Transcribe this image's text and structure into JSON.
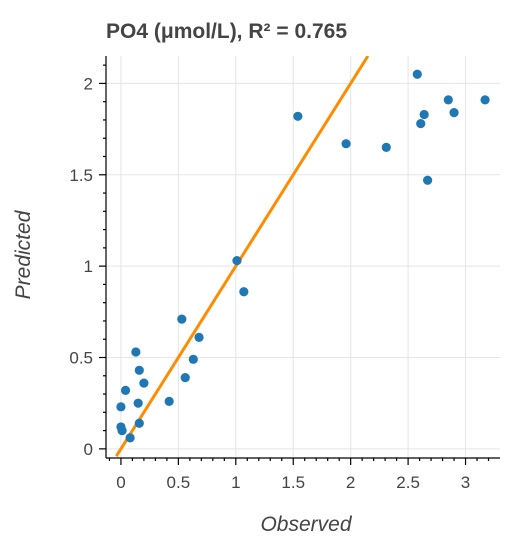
{
  "chart_data": {
    "type": "scatter",
    "title": "PO4 (μmol/L), R² = 0.765",
    "xlabel": "Observed",
    "ylabel": "Predicted",
    "xlim": [
      -0.13,
      3.3
    ],
    "ylim": [
      -0.05,
      2.15
    ],
    "x_ticks": [
      0,
      0.5,
      1,
      1.5,
      2,
      2.5,
      3
    ],
    "x_tick_labels": [
      "0",
      "0.5",
      "1",
      "1.5",
      "2",
      "2.5",
      "3"
    ],
    "y_ticks": [
      0,
      0.5,
      1,
      1.5,
      2
    ],
    "y_tick_labels": [
      "0",
      "0.5",
      "1",
      "1.5",
      "2"
    ],
    "grid": true,
    "point_color": "#1f77b4",
    "fit_line_color": "#ff8c00",
    "points": [
      {
        "x": 0.0,
        "y": 0.23
      },
      {
        "x": 0.0,
        "y": 0.12
      },
      {
        "x": 0.01,
        "y": 0.1
      },
      {
        "x": 0.04,
        "y": 0.32
      },
      {
        "x": 0.08,
        "y": 0.06
      },
      {
        "x": 0.13,
        "y": 0.53
      },
      {
        "x": 0.15,
        "y": 0.25
      },
      {
        "x": 0.16,
        "y": 0.43
      },
      {
        "x": 0.16,
        "y": 0.14
      },
      {
        "x": 0.2,
        "y": 0.36
      },
      {
        "x": 0.42,
        "y": 0.26
      },
      {
        "x": 0.53,
        "y": 0.71
      },
      {
        "x": 0.56,
        "y": 0.39
      },
      {
        "x": 0.63,
        "y": 0.49
      },
      {
        "x": 0.68,
        "y": 0.61
      },
      {
        "x": 1.01,
        "y": 1.03
      },
      {
        "x": 1.07,
        "y": 0.86
      },
      {
        "x": 1.54,
        "y": 1.82
      },
      {
        "x": 1.96,
        "y": 1.67
      },
      {
        "x": 2.31,
        "y": 1.65
      },
      {
        "x": 2.58,
        "y": 2.05
      },
      {
        "x": 2.61,
        "y": 1.78
      },
      {
        "x": 2.64,
        "y": 1.83
      },
      {
        "x": 2.67,
        "y": 1.47
      },
      {
        "x": 2.85,
        "y": 1.91
      },
      {
        "x": 2.9,
        "y": 1.84
      },
      {
        "x": 3.17,
        "y": 1.91
      }
    ],
    "fit_line": {
      "x": [
        -0.04,
        2.15
      ],
      "y": [
        -0.04,
        2.15
      ]
    }
  }
}
